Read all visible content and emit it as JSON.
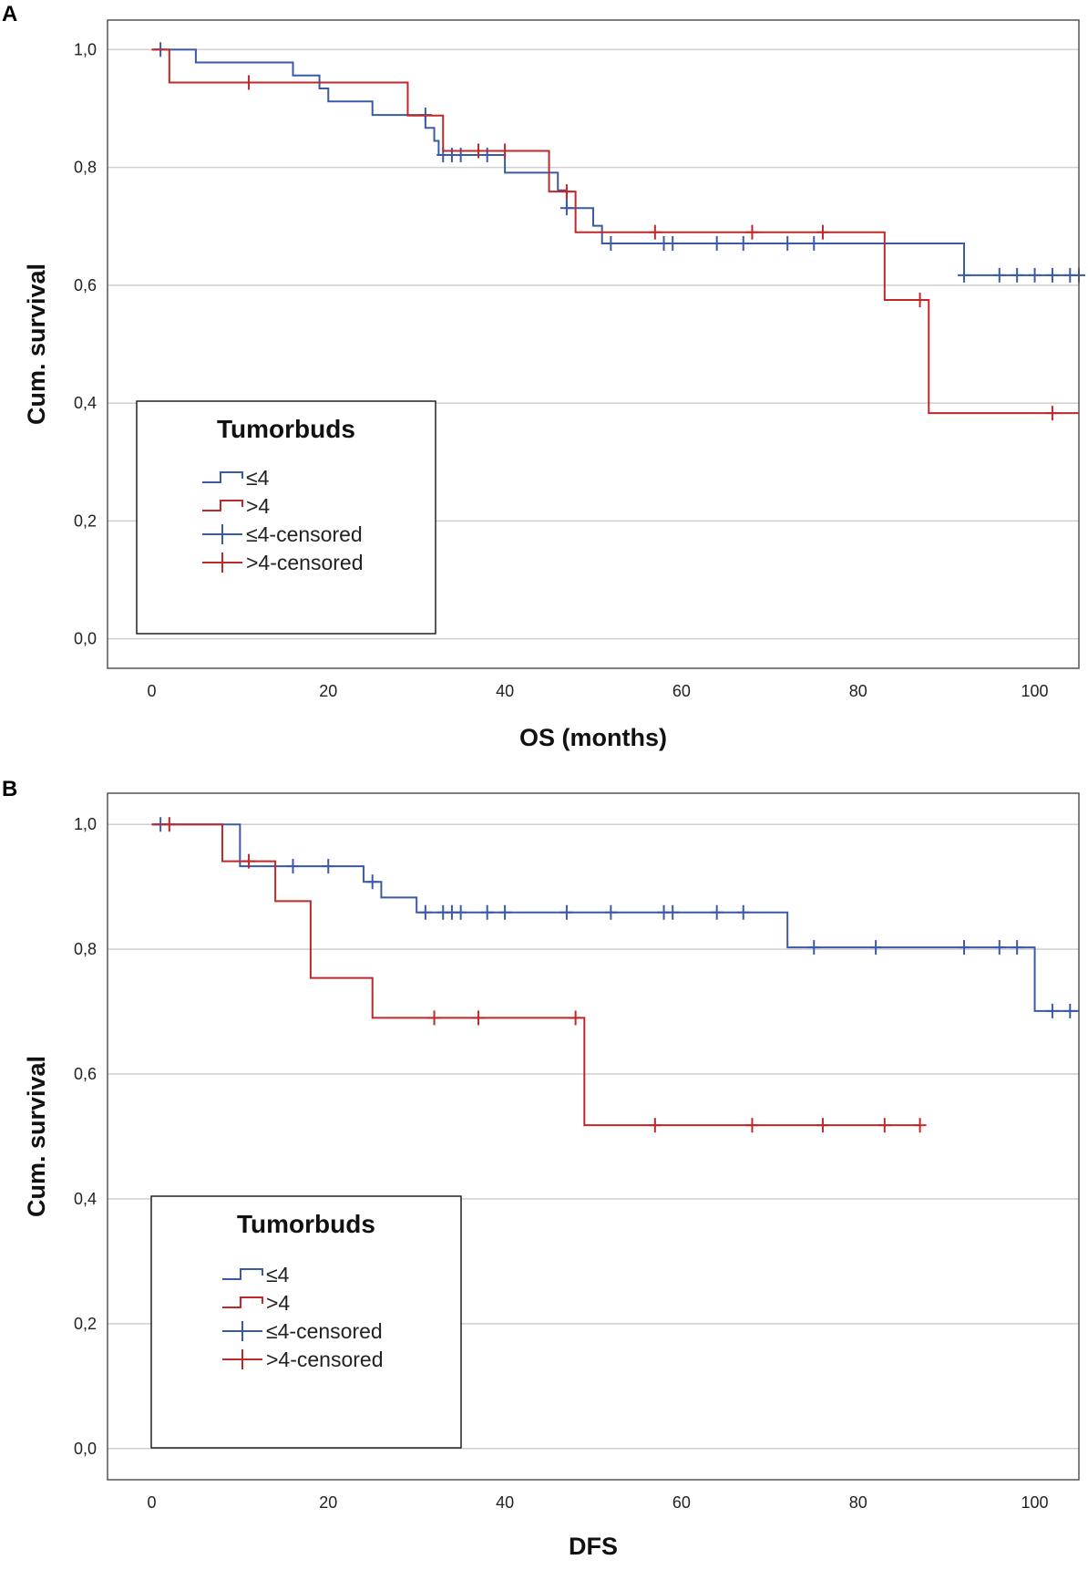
{
  "chart_data": [
    {
      "type": "line",
      "subtype": "kaplan-meier",
      "panel_label": "A",
      "xlabel": "OS (months)",
      "ylabel": "Cum. survival",
      "xlim": [
        -5,
        105
      ],
      "ylim": [
        -0.05,
        1.05
      ],
      "xticks": [
        0,
        20,
        40,
        60,
        80,
        100
      ],
      "xtick_labels": [
        "0",
        "20",
        "40",
        "60",
        "80",
        "100"
      ],
      "yticks": [
        0,
        0.2,
        0.4,
        0.6,
        0.8,
        1.0
      ],
      "ytick_labels": [
        "0,0",
        "0,2",
        "0,4",
        "0,6",
        "0,8",
        "1,0"
      ],
      "grid": "horizontal",
      "legend": {
        "title": "Tumorbuds",
        "placement": "bottom-left",
        "entries": [
          "≤4",
          ">4",
          "≤4-censored",
          ">4-censored"
        ]
      },
      "series": [
        {
          "name": "≤4",
          "color": "#3a5aa8",
          "steps": [
            [
              0,
              1.0
            ],
            [
              5,
              0.978
            ],
            [
              16,
              0.956
            ],
            [
              19,
              0.934
            ],
            [
              20,
              0.912
            ],
            [
              25,
              0.889
            ],
            [
              31,
              0.867
            ],
            [
              32,
              0.845
            ],
            [
              32.5,
              0.821
            ],
            [
              40,
              0.791
            ],
            [
              46,
              0.761
            ],
            [
              47,
              0.731
            ],
            [
              50,
              0.701
            ],
            [
              51,
              0.671
            ],
            [
              92,
              0.617
            ],
            [
              105,
              0.617
            ]
          ],
          "censored": [
            [
              1,
              1.0
            ],
            [
              31,
              0.889
            ],
            [
              33,
              0.821
            ],
            [
              34,
              0.821
            ],
            [
              35,
              0.821
            ],
            [
              38,
              0.821
            ],
            [
              47,
              0.731
            ],
            [
              52,
              0.671
            ],
            [
              58,
              0.671
            ],
            [
              59,
              0.671
            ],
            [
              64,
              0.671
            ],
            [
              67,
              0.671
            ],
            [
              72,
              0.671
            ],
            [
              75,
              0.671
            ],
            [
              92,
              0.617
            ],
            [
              96,
              0.617
            ],
            [
              98,
              0.617
            ],
            [
              100,
              0.617
            ],
            [
              102,
              0.617
            ],
            [
              104,
              0.617
            ],
            [
              105,
              0.617
            ]
          ]
        },
        {
          "name": ">4",
          "color": "#c0282a",
          "steps": [
            [
              0,
              1.0
            ],
            [
              2,
              0.944
            ],
            [
              29,
              0.888
            ],
            [
              33,
              0.828
            ],
            [
              45,
              0.759
            ],
            [
              48,
              0.69
            ],
            [
              83,
              0.575
            ],
            [
              88,
              0.383
            ],
            [
              105,
              0.383
            ]
          ],
          "censored": [
            [
              11,
              0.944
            ],
            [
              37,
              0.828
            ],
            [
              40,
              0.828
            ],
            [
              47,
              0.759
            ],
            [
              57,
              0.69
            ],
            [
              68,
              0.69
            ],
            [
              76,
              0.69
            ],
            [
              87,
              0.575
            ],
            [
              102,
              0.383
            ]
          ]
        }
      ]
    },
    {
      "type": "line",
      "subtype": "kaplan-meier",
      "panel_label": "B",
      "xlabel": "DFS",
      "ylabel": "Cum. survival",
      "xlim": [
        -5,
        105
      ],
      "ylim": [
        -0.05,
        1.05
      ],
      "xticks": [
        0,
        20,
        40,
        60,
        80,
        100
      ],
      "xtick_labels": [
        "0",
        "20",
        "40",
        "60",
        "80",
        "100"
      ],
      "yticks": [
        0,
        0.2,
        0.4,
        0.6,
        0.8,
        1.0
      ],
      "ytick_labels": [
        "0,0",
        "0,2",
        "0,4",
        "0,6",
        "0,8",
        "1,0"
      ],
      "grid": "horizontal",
      "legend": {
        "title": "Tumorbuds",
        "placement": "bottom-left",
        "entries": [
          "≤4",
          ">4",
          "≤4-censored",
          ">4-censored"
        ]
      },
      "series": [
        {
          "name": "≤4",
          "color": "#3a5aa8",
          "steps": [
            [
              0,
              1.0
            ],
            [
              10,
              0.933
            ],
            [
              24,
              0.908
            ],
            [
              26,
              0.883
            ],
            [
              30,
              0.859
            ],
            [
              72,
              0.803
            ],
            [
              100,
              0.701
            ],
            [
              105,
              0.701
            ]
          ],
          "censored": [
            [
              1,
              1.0
            ],
            [
              16,
              0.933
            ],
            [
              20,
              0.933
            ],
            [
              25,
              0.908
            ],
            [
              31,
              0.859
            ],
            [
              33,
              0.859
            ],
            [
              34,
              0.859
            ],
            [
              35,
              0.859
            ],
            [
              38,
              0.859
            ],
            [
              40,
              0.859
            ],
            [
              47,
              0.859
            ],
            [
              52,
              0.859
            ],
            [
              58,
              0.859
            ],
            [
              59,
              0.859
            ],
            [
              64,
              0.859
            ],
            [
              67,
              0.859
            ],
            [
              75,
              0.803
            ],
            [
              82,
              0.803
            ],
            [
              92,
              0.803
            ],
            [
              96,
              0.803
            ],
            [
              98,
              0.803
            ],
            [
              102,
              0.701
            ],
            [
              104,
              0.701
            ]
          ]
        },
        {
          "name": ">4",
          "color": "#c0282a",
          "steps": [
            [
              0,
              1.0
            ],
            [
              8,
              0.941
            ],
            [
              14,
              0.877
            ],
            [
              18,
              0.754
            ],
            [
              25,
              0.69
            ],
            [
              49,
              0.518
            ],
            [
              87,
              0.518
            ]
          ],
          "censored": [
            [
              2,
              1.0
            ],
            [
              11,
              0.941
            ],
            [
              32,
              0.69
            ],
            [
              37,
              0.69
            ],
            [
              48,
              0.69
            ],
            [
              57,
              0.518
            ],
            [
              68,
              0.518
            ],
            [
              76,
              0.518
            ],
            [
              83,
              0.518
            ],
            [
              87,
              0.518
            ]
          ]
        }
      ]
    }
  ]
}
